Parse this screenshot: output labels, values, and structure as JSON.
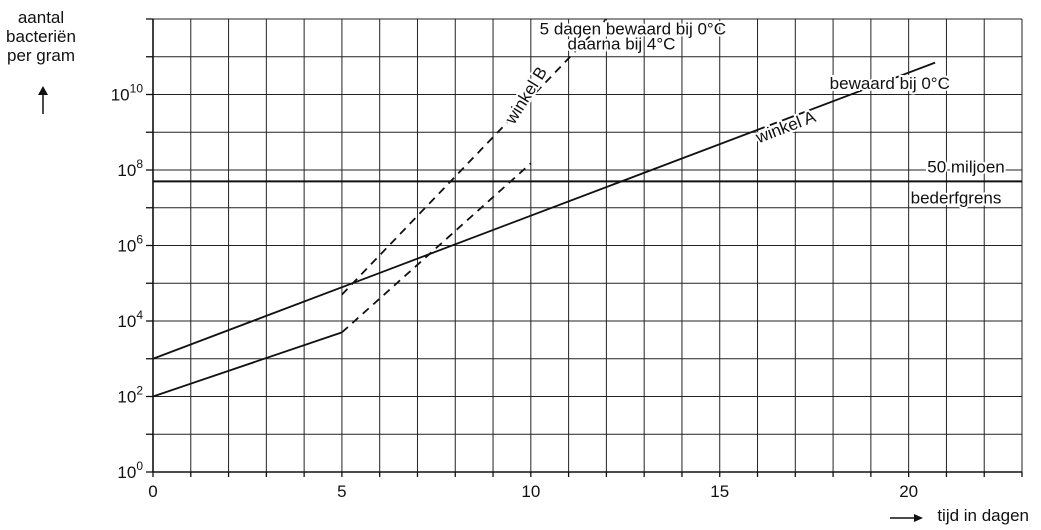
{
  "y_axis_label": [
    "aantal",
    "bacteriën",
    "per gram"
  ],
  "x_axis_label": "tijd in dagen",
  "chart_data": {
    "type": "line",
    "title": "",
    "xlabel": "tijd in dagen",
    "ylabel": "aantal bacteriën per gram",
    "xlim": [
      0,
      23
    ],
    "ylim_log10": [
      0,
      12
    ],
    "y_scale": "log",
    "x_ticks": [
      0,
      5,
      10,
      15,
      20
    ],
    "y_ticks": [
      {
        "base": "10",
        "exp": "0",
        "value": 1
      },
      {
        "base": "10",
        "exp": "2",
        "value": 100
      },
      {
        "base": "10",
        "exp": "4",
        "value": 10000
      },
      {
        "base": "10",
        "exp": "6",
        "value": 1000000
      },
      {
        "base": "10",
        "exp": "8",
        "value": 100000000
      },
      {
        "base": "10",
        "exp": "10",
        "value": 10000000000
      }
    ],
    "grid": true,
    "series": [
      {
        "name": "winkel A",
        "style": "solid",
        "x": [
          0,
          20.7
        ],
        "y": [
          1000,
          70000000000
        ]
      },
      {
        "name": "winkel A",
        "style": "dashed",
        "x": [
          5,
          12
        ],
        "y": [
          50000,
          1000000000000
        ]
      },
      {
        "name": "winkel B",
        "style": "solid",
        "x": [
          0,
          5
        ],
        "y": [
          100,
          5000
        ]
      },
      {
        "name": "winkel B",
        "style": "dashed",
        "x": [
          5,
          10
        ],
        "y": [
          5000,
          150000000
        ]
      }
    ],
    "reference_lines": [
      {
        "label_top": "50 miljoen",
        "label_bottom": "bederfgrens",
        "y": 50000000
      }
    ],
    "annotations": [
      {
        "text": "bewaard bij 0°C",
        "x": 19.5,
        "y_log10": 10.3,
        "anchor": "middle"
      },
      {
        "text": "5 dagen bewaard bij 0°C",
        "x": 12.7,
        "y_log10": 11.75,
        "anchor": "middle"
      },
      {
        "text": "daarna bij 4°C",
        "x": 12.4,
        "y_log10": 11.35,
        "anchor": "middle"
      }
    ],
    "series_labels": [
      {
        "text": "winkel A",
        "x": 16.8,
        "y_log10": 9.0,
        "angle": -21
      },
      {
        "text": "winkel B",
        "x": 10.0,
        "y_log10": 9.9,
        "angle": -58
      }
    ]
  }
}
